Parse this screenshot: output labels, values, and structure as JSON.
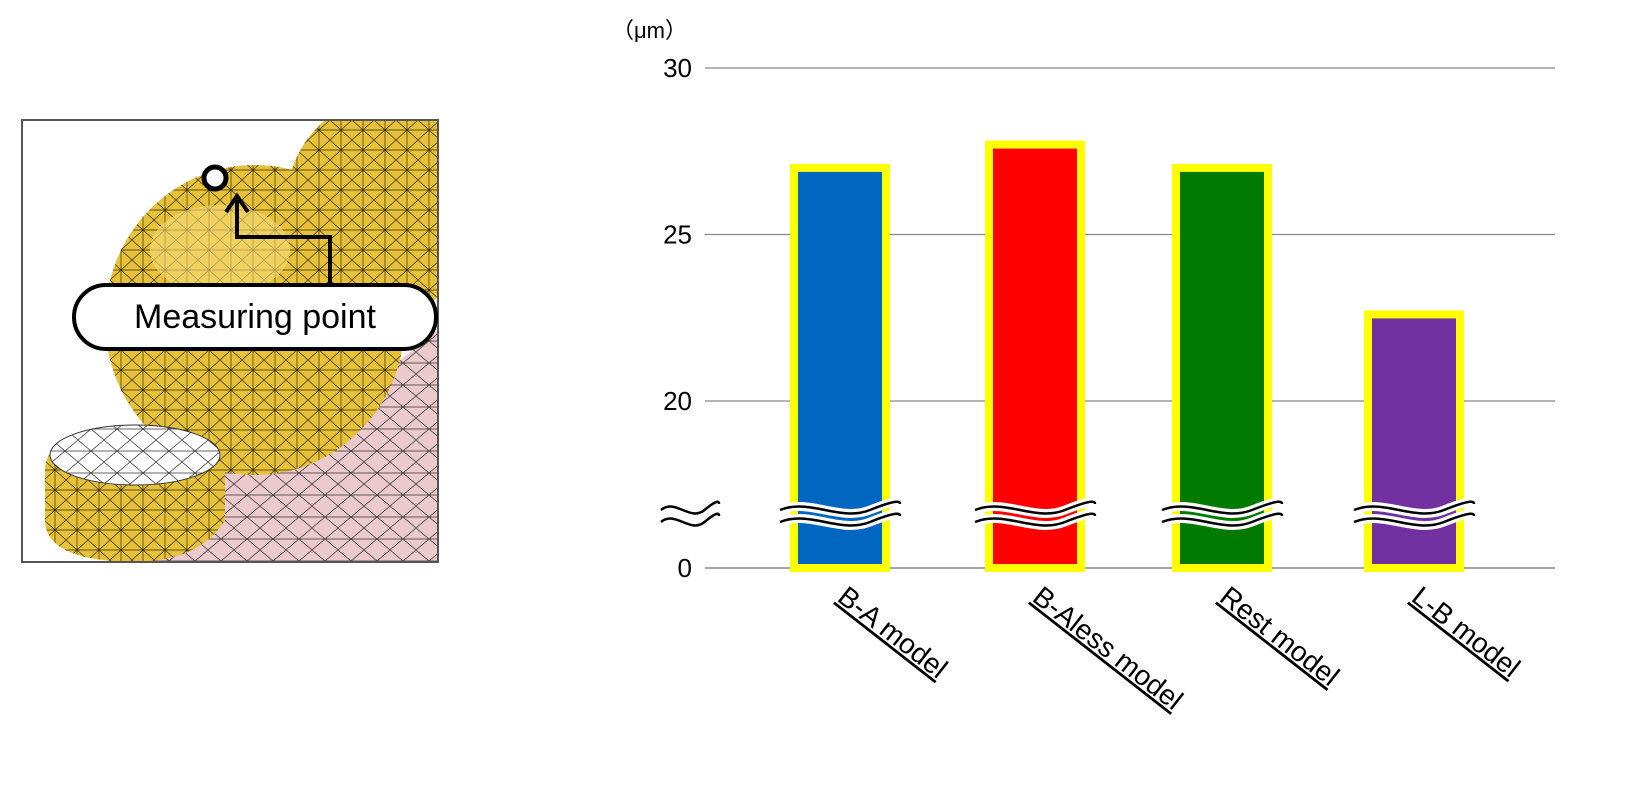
{
  "inset": {
    "callout_label": "Measuring point",
    "colors": {
      "gold": "#e8c13a",
      "pink": "#ecc9cc",
      "mesh": "#000000"
    }
  },
  "chart_data": {
    "type": "bar",
    "title": "",
    "unit": "（μm）",
    "xlabel": "",
    "ylabel": "",
    "categories": [
      "B-A model",
      "B-Aless model",
      "Rest model",
      "L-B model"
    ],
    "values": [
      27.0,
      27.7,
      27.0,
      22.6
    ],
    "colors": [
      "#0066c0",
      "#ff0000",
      "#007a00",
      "#7030a0"
    ],
    "highlight_outline": "#ffff00",
    "ylim": [
      0,
      30
    ],
    "yticks": [
      0,
      20,
      25,
      30
    ],
    "axis_break": {
      "from": 0,
      "to": 17.5
    },
    "grid": true,
    "legend": "none"
  }
}
